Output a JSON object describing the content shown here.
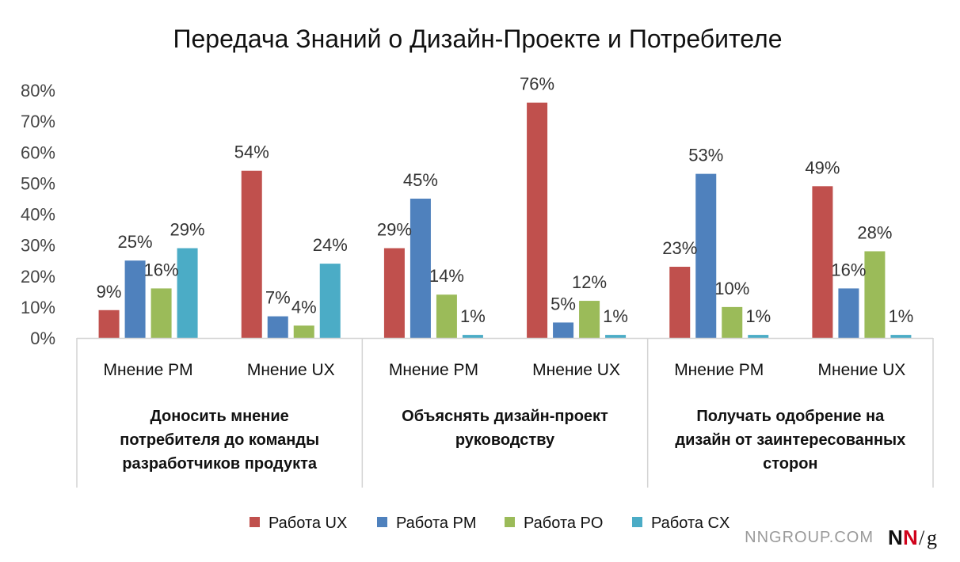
{
  "chart_data": {
    "type": "bar",
    "title": "Передача Знаний о Дизайн-Проекте и Потребителе",
    "y_ticks": [
      "0%",
      "10%",
      "20%",
      "30%",
      "40%",
      "50%",
      "60%",
      "70%",
      "80%"
    ],
    "ylim": [
      0,
      80
    ],
    "grid": false,
    "legend_position": "bottom",
    "series": [
      {
        "name": "Работа UX",
        "color": "#c0504d"
      },
      {
        "name": "Работа PM",
        "color": "#4f81bd"
      },
      {
        "name": "Работа PO",
        "color": "#9bbb59"
      },
      {
        "name": "Работа CX",
        "color": "#4bacc6"
      }
    ],
    "groups": [
      {
        "label": "Доносить мнение потребителя до команды разработчиков продукта",
        "label_lines": [
          "Доносить мнение",
          "потребителя до команды",
          "разработчиков продукта"
        ],
        "categories": [
          {
            "label": "Мнение PM",
            "values": [
              9,
              25,
              16,
              29
            ],
            "labels": [
              "9%",
              "25%",
              "16%",
              "29%"
            ]
          },
          {
            "label": "Мнение UX",
            "values": [
              54,
              7,
              4,
              24
            ],
            "labels": [
              "54%",
              "7%",
              "4%",
              "24%"
            ]
          }
        ]
      },
      {
        "label": "Объяснять дизайн-проект руководству",
        "label_lines": [
          "Объяснять дизайн-проект",
          "руководству"
        ],
        "categories": [
          {
            "label": "Мнение PM",
            "values": [
              29,
              45,
              14,
              1
            ],
            "labels": [
              "29%",
              "45%",
              "14%",
              "1%"
            ]
          },
          {
            "label": "Мнение UX",
            "values": [
              76,
              5,
              12,
              1
            ],
            "labels": [
              "76%",
              "5%",
              "12%",
              "1%"
            ]
          }
        ]
      },
      {
        "label": "Получать одобрение на дизайн от заинтересованных сторон",
        "label_lines": [
          "Получать одобрение на",
          "дизайн от заинтересованных",
          "сторон"
        ],
        "categories": [
          {
            "label": "Мнение PM",
            "values": [
              23,
              53,
              10,
              1
            ],
            "labels": [
              "23%",
              "53%",
              "10%",
              "1%"
            ]
          },
          {
            "label": "Мнение UX",
            "values": [
              49,
              16,
              28,
              1
            ],
            "labels": [
              "49%",
              "16%",
              "28%",
              "1%"
            ]
          }
        ]
      }
    ]
  },
  "footer": {
    "site": "NNGROUP.COM",
    "logo_left": "N",
    "logo_right": "N",
    "logo_slash": "/",
    "logo_g": "g",
    "logo_color_left": "#111111",
    "logo_color_right": "#d0021b"
  }
}
